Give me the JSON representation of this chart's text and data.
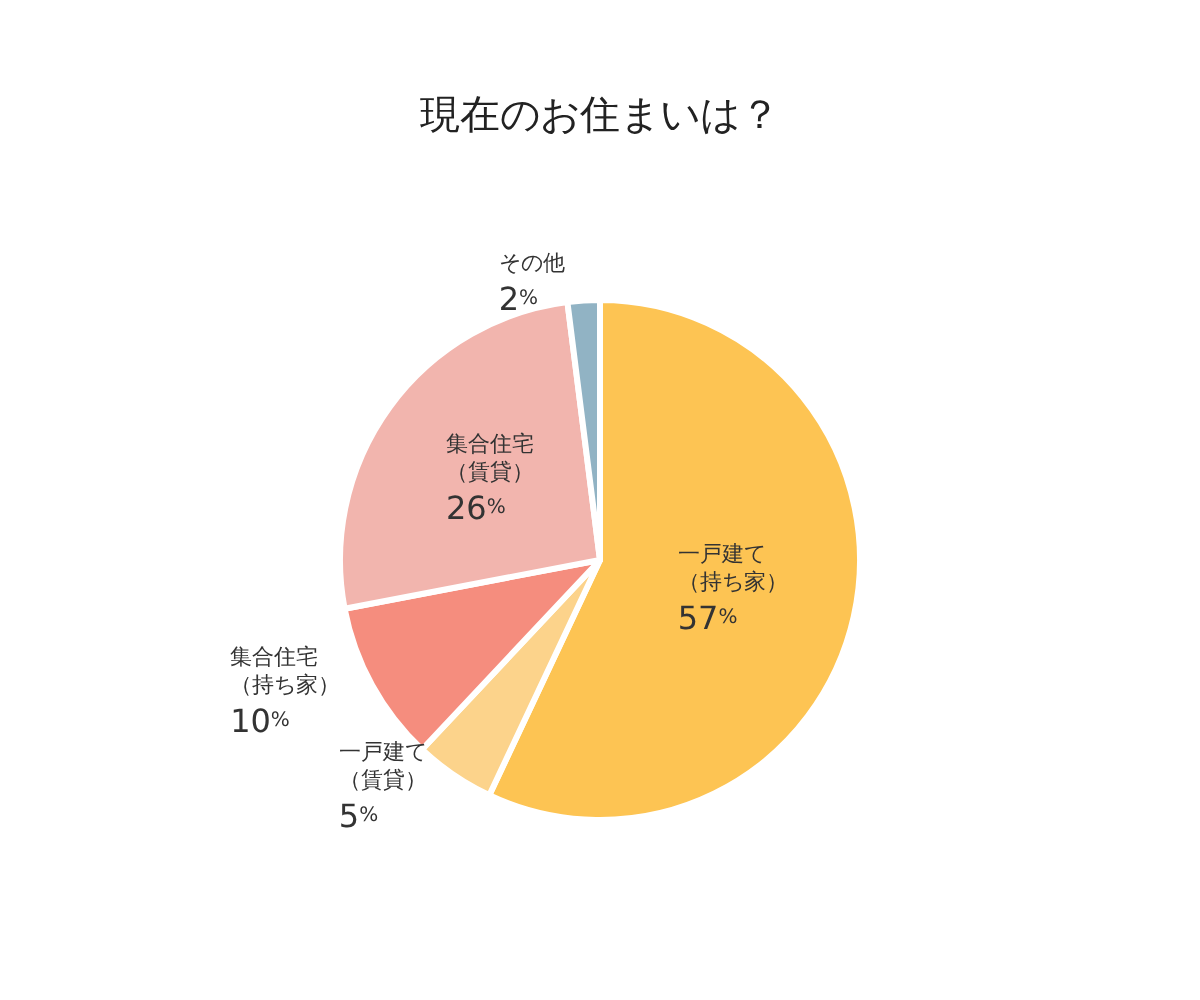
{
  "chart_data": {
    "type": "pie",
    "title": "現在のお住まいは？",
    "categories": [
      "一戸建て（持ち家）",
      "一戸建て（賃貸）",
      "集合住宅（持ち家）",
      "集合住宅（賃貸）",
      "その他"
    ],
    "values": [
      57,
      5,
      10,
      26,
      2
    ],
    "value_labels": [
      "57%",
      "5%",
      "10%",
      "26%",
      "2%"
    ],
    "colors": [
      "#fdc453",
      "#fcd38b",
      "#f58d7e",
      "#f2b5ae",
      "#91b3c4"
    ],
    "legend": false
  }
}
